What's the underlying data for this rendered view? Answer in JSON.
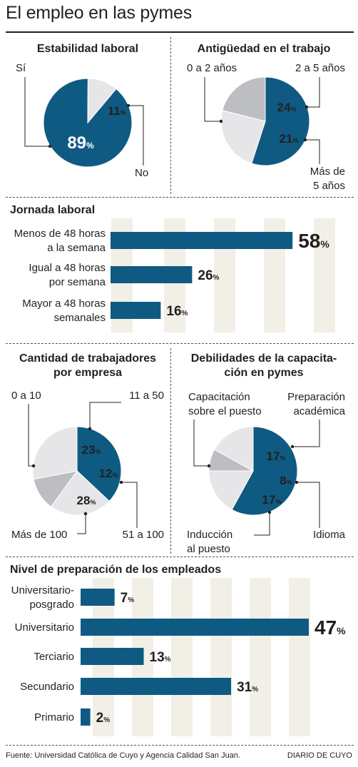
{
  "header": {
    "title": "El empleo en las pymes"
  },
  "footer": {
    "source": "Fuente: Universidad Católica de Cuyo y Agencia Calidad San Juan.",
    "brand": "DIARIO DE CUYO"
  },
  "colors": {
    "blue": "#0f5a82",
    "light_gray": "#e6e6e8",
    "mid_gray": "#bdbec2",
    "dark_gray": "#a7a9ac",
    "stripe": "#f1efe6",
    "text": "#231f20"
  },
  "chart_data": [
    {
      "id": "estabilidad",
      "type": "pie",
      "title": "Estabilidad laboral",
      "slices": [
        {
          "name": "Sí",
          "value": 89,
          "label": "89",
          "color": "#0f5a82"
        },
        {
          "name": "No",
          "value": 11,
          "label": "11",
          "color": "#e6e6e8"
        }
      ]
    },
    {
      "id": "antiguedad",
      "type": "pie",
      "title": "Antigüedad en el trabajo",
      "slices": [
        {
          "name": "0 a 2 años",
          "value": 55,
          "label": "55",
          "color": "#0f5a82"
        },
        {
          "name": "2 a 5 años",
          "value": 24,
          "label": "24",
          "color": "#e6e6e8"
        },
        {
          "name": "Más de 5 años",
          "value": 21,
          "label": "21",
          "color": "#bdbec2"
        }
      ]
    },
    {
      "id": "jornada",
      "type": "bar",
      "title": "Jornada laboral",
      "categories": [
        "Menos de 48 horas a la semana",
        "Igual a 48 horas por semana",
        "Mayor a 48 horas semanales"
      ],
      "category_lines": [
        [
          "Menos de 48 horas",
          "a la semana"
        ],
        [
          "Igual a 48 horas",
          "por semana"
        ],
        [
          "Mayor a 48 horas",
          "semanales"
        ]
      ],
      "values": [
        58,
        26,
        16
      ],
      "unit": "%",
      "xlim": [
        0,
        60
      ]
    },
    {
      "id": "trabajadores",
      "type": "pie",
      "title": "Cantidad de trabajadores por empresa",
      "title_lines": [
        "Cantidad de trabajadores",
        "por empresa"
      ],
      "slices": [
        {
          "name": "0 a 10",
          "value": 37,
          "label": "37",
          "color": "#0f5a82"
        },
        {
          "name": "11 a 50",
          "value": 23,
          "label": "23",
          "color": "#e6e6e8"
        },
        {
          "name": "51 a 100",
          "value": 12,
          "label": "12",
          "color": "#bdbec2"
        },
        {
          "name": "Más de 100",
          "value": 28,
          "label": "28",
          "color": "#e6e6e8"
        }
      ]
    },
    {
      "id": "debilidades",
      "type": "pie",
      "title": "Debilidades de la capacitación en pymes",
      "title_lines": [
        "Debilidades de la capacita-",
        "ción en pymes"
      ],
      "slices": [
        {
          "name": "Capacitación sobre el puesto",
          "value": 58,
          "label": "58",
          "color": "#0f5a82"
        },
        {
          "name": "Preparación académica",
          "value": 17,
          "label": "17",
          "color": "#e6e6e8"
        },
        {
          "name": "Idioma",
          "value": 8,
          "label": "8",
          "color": "#bdbec2"
        },
        {
          "name": "Inducción al puesto",
          "value": 17,
          "label": "17",
          "color": "#e6e6e8"
        }
      ]
    },
    {
      "id": "nivel",
      "type": "bar",
      "title": "Nivel de preparación de los empleados",
      "categories": [
        "Universitario-posgrado",
        "Universitario",
        "Terciario",
        "Secundario",
        "Primario"
      ],
      "category_lines": [
        [
          "Universitario-",
          "posgrado"
        ],
        [
          "Universitario"
        ],
        [
          "Terciario"
        ],
        [
          "Secundario"
        ],
        [
          "Primario"
        ]
      ],
      "values": [
        7,
        47,
        13,
        31,
        2
      ],
      "unit": "%",
      "xlim": [
        0,
        47
      ]
    }
  ],
  "pie_labels": {
    "estabilidad": {
      "si": "Sí",
      "no": "No"
    },
    "antiguedad": {
      "a": "0 a 2 años",
      "b": "2 a 5 años",
      "c1": "Más de",
      "c2": "5 años"
    },
    "trabajadores": {
      "a": "0 a 10",
      "b": "11 a 50",
      "c": "51 a 100",
      "d": "Más de 100"
    },
    "debilidades": {
      "a1": "Capacitación",
      "a2": "sobre el puesto",
      "b1": "Preparación",
      "b2": "académica",
      "c": "Idioma",
      "d1": "Inducción",
      "d2": "al puesto"
    }
  }
}
